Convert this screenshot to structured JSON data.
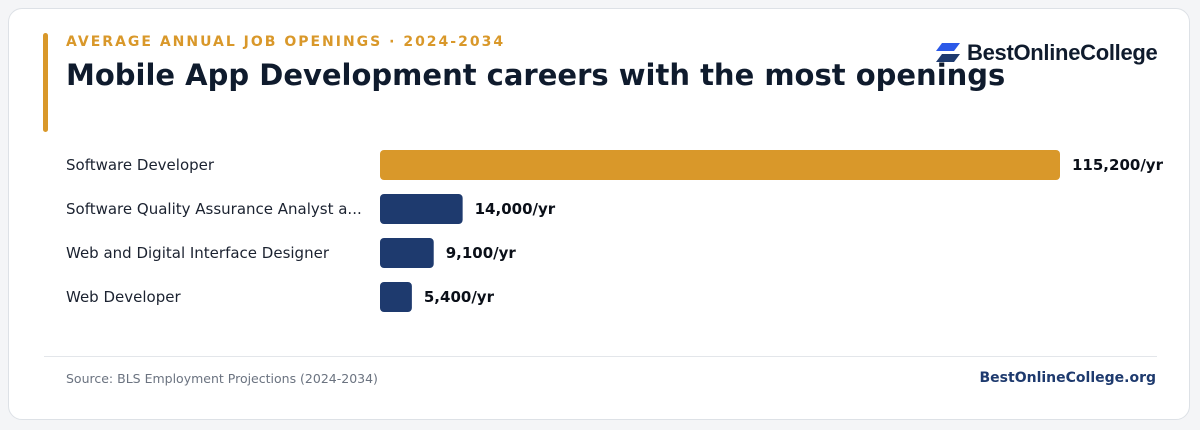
{
  "header": {
    "eyebrow": "AVERAGE ANNUAL JOB OPENINGS · 2024-2034",
    "title": "Mobile App Development careers with the most openings"
  },
  "brand": {
    "name": "BestOnlineCollege",
    "logo_icon": "stacked-parallelogram-logo-icon"
  },
  "colors": {
    "highlight": "#d9982a",
    "bar": "#1e3a6e",
    "accent": "#d9982a"
  },
  "chart_data": {
    "type": "bar",
    "orientation": "horizontal",
    "categories": [
      "Software Developer",
      "Software Quality Assurance Analyst a...",
      "Web and Digital Interface Designer",
      "Web Developer"
    ],
    "values": [
      115200,
      14000,
      9100,
      5400
    ],
    "value_labels": [
      "115,200/yr",
      "14,000/yr",
      "9,100/yr",
      "5,400/yr"
    ],
    "highlight_index": 0,
    "xlim": [
      0,
      115200
    ],
    "grid": false,
    "legend": "none"
  },
  "footer": {
    "source": "Source: BLS Employment Projections (2024-2034)",
    "site": "BestOnlineCollege.org"
  }
}
